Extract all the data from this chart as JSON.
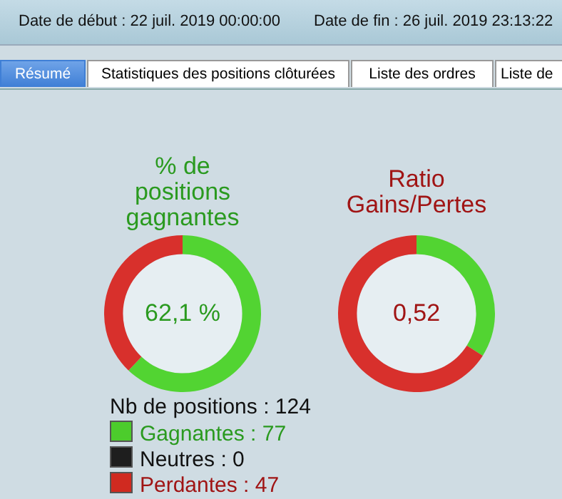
{
  "chart_data": [
    {
      "type": "other",
      "annotations": [
        "Date de début : 22 juil. 2019 00:00:00",
        "Date de fin : 26 juil. 2019 23:13:22",
        "Résumé",
        "Statistiques des positions clôturées",
        "Liste des ordres",
        "Liste de"
      ]
    },
    {
      "type": "donut",
      "title": "% de positions gagnantes",
      "categories": [
        null,
        null
      ],
      "values": [
        62.1,
        37.9
      ],
      "colors": [
        "#52d432",
        "#d8302c"
      ],
      "annotations": [
        "62,1 %"
      ]
    },
    {
      "type": "donut",
      "title": "Ratio Gains/Pertes",
      "categories": [
        null,
        null
      ],
      "values": [
        34,
        66
      ],
      "colors": [
        "#52d432",
        "#d8302c"
      ],
      "annotations": [
        "0,52"
      ]
    },
    {
      "type": "other",
      "annotations": [
        "Nb de positions : 124",
        "Gagnantes : 77",
        "Neutres : 0",
        "Perdantes : 47"
      ],
      "colors": [
        "#4ccc2c",
        "#1e1e1e",
        "#d02a20"
      ]
    }
  ]
}
